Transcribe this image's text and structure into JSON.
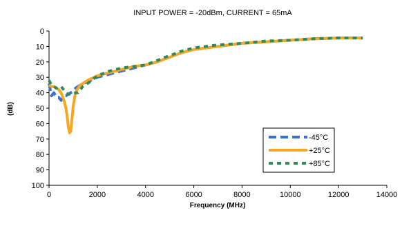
{
  "chart_data": {
    "type": "line",
    "title": "INPUT POWER = -20dBm, CURRENT =  65mA",
    "xlabel": "Frequency (MHz)",
    "ylabel": "(dB)",
    "xlim": [
      0,
      14000
    ],
    "ylim": [
      0,
      100
    ],
    "y_inverted": true,
    "x_ticks": [
      0,
      2000,
      4000,
      6000,
      8000,
      10000,
      12000,
      14000
    ],
    "y_ticks": [
      0,
      10,
      20,
      30,
      40,
      50,
      60,
      70,
      80,
      90,
      100
    ],
    "grid": false,
    "legend_position": "bottom-right",
    "series": [
      {
        "name": "-45°C",
        "color": "#3a6fd8",
        "style": "dashed",
        "x": [
          0,
          100,
          200,
          300,
          400,
          500,
          600,
          700,
          800,
          900,
          1000,
          1100,
          1200,
          1300,
          1400,
          1600,
          2000,
          2500,
          3000,
          3500,
          4000,
          4500,
          4800,
          5000,
          5500,
          6000,
          7000,
          8000,
          9000,
          10000,
          11000,
          12000,
          13000
        ],
        "values": [
          34,
          42,
          40,
          43,
          43,
          45,
          42,
          42,
          41,
          40,
          39,
          37,
          36,
          35,
          34,
          33,
          30,
          28,
          26,
          24,
          22,
          20,
          18,
          17,
          14,
          12,
          10,
          8,
          7,
          6,
          5,
          4.5,
          4.5
        ]
      },
      {
        "name": "+25°C",
        "color": "#f5a623",
        "style": "solid",
        "x": [
          0,
          100,
          200,
          300,
          400,
          500,
          600,
          700,
          750,
          800,
          850,
          900,
          950,
          1000,
          1050,
          1100,
          1200,
          1300,
          1400,
          1500,
          1600,
          2000,
          2500,
          3000,
          3500,
          4000,
          4500,
          4800,
          5000,
          5500,
          6000,
          7000,
          8000,
          9000,
          10000,
          11000,
          12000,
          13000
        ],
        "values": [
          35,
          36,
          36,
          37,
          38,
          40,
          44,
          50,
          55,
          62,
          66,
          65,
          57,
          49,
          44,
          40,
          37,
          35,
          34,
          33,
          32,
          29,
          27,
          25,
          23,
          22,
          20,
          18,
          17,
          14,
          12,
          10,
          8,
          7,
          6,
          5,
          4.5,
          4.5
        ]
      },
      {
        "name": "+85°C",
        "color": "#2e8b57",
        "style": "dashed",
        "x": [
          0,
          100,
          200,
          300,
          400,
          500,
          600,
          700,
          800,
          900,
          1000,
          1100,
          1200,
          1300,
          1400,
          1600,
          2000,
          2500,
          3000,
          3500,
          4000,
          4500,
          4800,
          5000,
          5500,
          6000,
          7000,
          8000,
          9000,
          10000,
          11000,
          12000,
          13000
        ],
        "values": [
          32,
          35,
          36,
          37,
          36,
          36,
          38,
          40,
          41,
          41,
          41,
          40,
          40,
          38,
          36,
          34,
          29,
          26,
          24,
          23,
          22,
          19,
          17,
          16,
          13,
          11,
          9,
          8,
          6.5,
          6,
          5,
          4.5,
          4.5
        ]
      }
    ]
  }
}
